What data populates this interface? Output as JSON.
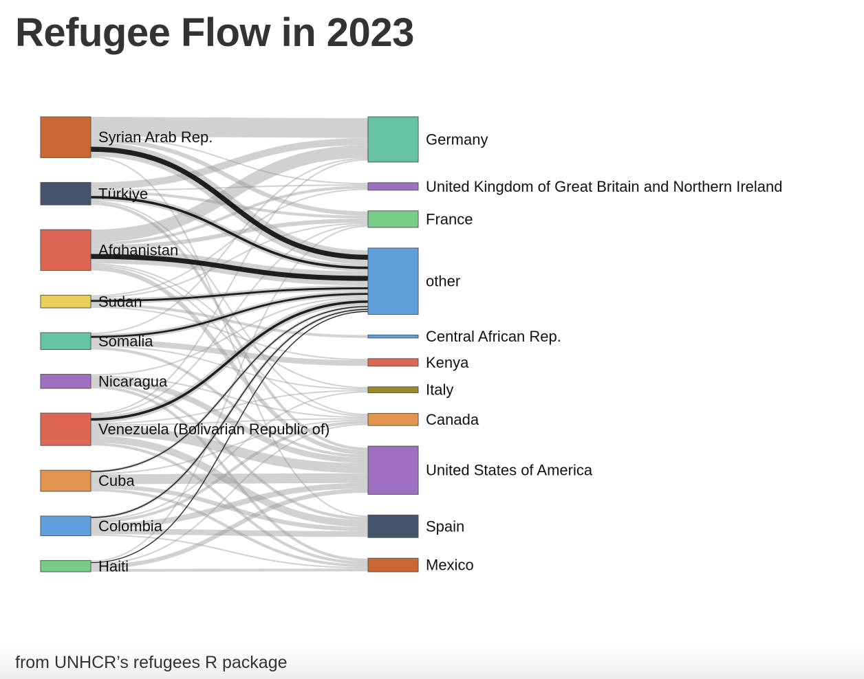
{
  "title": "Refugee Flow in 2023",
  "caption": "from UNHCR’s refugees R package",
  "sankey": {
    "sources": [
      {
        "id": "syr",
        "name": "Syrian Arab Rep.",
        "color": "#cc6633"
      },
      {
        "id": "tur",
        "name": "Türkiye",
        "color": "#44546a"
      },
      {
        "id": "afg",
        "name": "Afghanistan",
        "color": "#dd6655"
      },
      {
        "id": "sud",
        "name": "Sudan",
        "color": "#e8d05a"
      },
      {
        "id": "som",
        "name": "Somalia",
        "color": "#66c2a5"
      },
      {
        "id": "nic",
        "name": "Nicaragua",
        "color": "#a070c0"
      },
      {
        "id": "ven",
        "name": "Venezuela (Bolivarian Republic of)",
        "color": "#dd6655"
      },
      {
        "id": "cub",
        "name": "Cuba",
        "color": "#e0944e"
      },
      {
        "id": "col",
        "name": "Colombia",
        "color": "#5fa0dc"
      },
      {
        "id": "hai",
        "name": "Haiti",
        "color": "#77cc88"
      }
    ],
    "targets": [
      {
        "id": "ger",
        "name": "Germany",
        "color": "#66c2a5"
      },
      {
        "id": "uk",
        "name": "United Kingdom of Great Britain and Northern Ireland",
        "color": "#a070c0"
      },
      {
        "id": "fra",
        "name": "France",
        "color": "#77cc88"
      },
      {
        "id": "oth",
        "name": "other",
        "color": "#5fa0dc"
      },
      {
        "id": "car",
        "name": "Central African Rep.",
        "color": "#5fa0dc"
      },
      {
        "id": "ken",
        "name": "Kenya",
        "color": "#dd6655"
      },
      {
        "id": "ita",
        "name": "Italy",
        "color": "#9a8a2a"
      },
      {
        "id": "can",
        "name": "Canada",
        "color": "#e0944e"
      },
      {
        "id": "usa",
        "name": "United States of America",
        "color": "#a070c0"
      },
      {
        "id": "esp",
        "name": "Spain",
        "color": "#44546a"
      },
      {
        "id": "mex",
        "name": "Mexico",
        "color": "#cc6633"
      }
    ],
    "links": [
      {
        "source": "syr",
        "target": "ger",
        "value": 14
      },
      {
        "source": "syr",
        "target": "oth",
        "value": 10,
        "highlight": true
      },
      {
        "source": "syr",
        "target": "fra",
        "value": 3
      },
      {
        "source": "syr",
        "target": "uk",
        "value": 1
      },
      {
        "source": "syr",
        "target": "esp",
        "value": 1
      },
      {
        "source": "tur",
        "target": "ger",
        "value": 5
      },
      {
        "source": "tur",
        "target": "oth",
        "value": 5,
        "highlight": true
      },
      {
        "source": "tur",
        "target": "fra",
        "value": 2
      },
      {
        "source": "tur",
        "target": "usa",
        "value": 2
      },
      {
        "source": "tur",
        "target": "can",
        "value": 1
      },
      {
        "source": "tur",
        "target": "uk",
        "value": 1
      },
      {
        "source": "afg",
        "target": "ger",
        "value": 9
      },
      {
        "source": "afg",
        "target": "oth",
        "value": 10,
        "highlight": true
      },
      {
        "source": "afg",
        "target": "fra",
        "value": 3
      },
      {
        "source": "afg",
        "target": "uk",
        "value": 2
      },
      {
        "source": "afg",
        "target": "usa",
        "value": 3
      },
      {
        "source": "afg",
        "target": "ita",
        "value": 1
      },
      {
        "source": "afg",
        "target": "can",
        "value": 1
      },
      {
        "source": "sud",
        "target": "oth",
        "value": 4,
        "highlight": true
      },
      {
        "source": "sud",
        "target": "car",
        "value": 2
      },
      {
        "source": "sud",
        "target": "fra",
        "value": 1
      },
      {
        "source": "sud",
        "target": "ken",
        "value": 1
      },
      {
        "source": "sud",
        "target": "uk",
        "value": 1
      },
      {
        "source": "som",
        "target": "oth",
        "value": 4,
        "highlight": true
      },
      {
        "source": "som",
        "target": "ken",
        "value": 4
      },
      {
        "source": "som",
        "target": "usa",
        "value": 2
      },
      {
        "source": "som",
        "target": "ger",
        "value": 1
      },
      {
        "source": "som",
        "target": "ita",
        "value": 1
      },
      {
        "source": "nic",
        "target": "usa",
        "value": 4
      },
      {
        "source": "nic",
        "target": "esp",
        "value": 2
      },
      {
        "source": "nic",
        "target": "mex",
        "value": 2
      },
      {
        "source": "nic",
        "target": "oth",
        "value": 1
      },
      {
        "source": "nic",
        "target": "can",
        "value": 1
      },
      {
        "source": "ven",
        "target": "usa",
        "value": 7
      },
      {
        "source": "ven",
        "target": "esp",
        "value": 5
      },
      {
        "source": "ven",
        "target": "oth",
        "value": 5,
        "highlight": true
      },
      {
        "source": "ven",
        "target": "mex",
        "value": 2
      },
      {
        "source": "ven",
        "target": "can",
        "value": 1
      },
      {
        "source": "ven",
        "target": "ita",
        "value": 1
      },
      {
        "source": "ven",
        "target": "ger",
        "value": 1
      },
      {
        "source": "ven",
        "target": "fra",
        "value": 1
      },
      {
        "source": "cub",
        "target": "usa",
        "value": 7
      },
      {
        "source": "cub",
        "target": "esp",
        "value": 3
      },
      {
        "source": "cub",
        "target": "mex",
        "value": 2
      },
      {
        "source": "cub",
        "target": "oth",
        "value": 2,
        "highlight": true
      },
      {
        "source": "cub",
        "target": "can",
        "value": 1
      },
      {
        "source": "col",
        "target": "usa",
        "value": 4
      },
      {
        "source": "col",
        "target": "esp",
        "value": 4
      },
      {
        "source": "col",
        "target": "can",
        "value": 2
      },
      {
        "source": "col",
        "target": "oth",
        "value": 2,
        "highlight": true
      },
      {
        "source": "col",
        "target": "mex",
        "value": 1
      },
      {
        "source": "col",
        "target": "ita",
        "value": 1
      },
      {
        "source": "hai",
        "target": "usa",
        "value": 3
      },
      {
        "source": "hai",
        "target": "mex",
        "value": 2
      },
      {
        "source": "hai",
        "target": "can",
        "value": 1
      },
      {
        "source": "hai",
        "target": "oth",
        "value": 1,
        "highlight": true
      },
      {
        "source": "hai",
        "target": "fra",
        "value": 1
      }
    ]
  }
}
